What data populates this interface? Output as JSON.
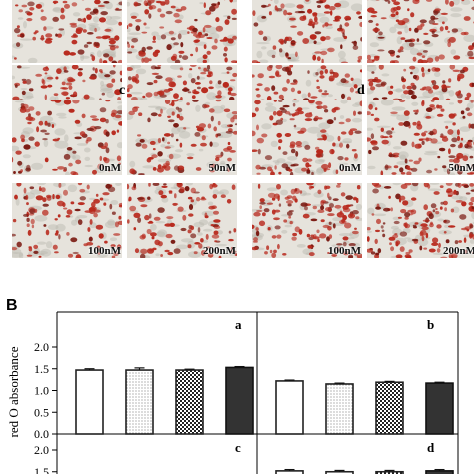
{
  "section_b_label": "B",
  "micrographs": {
    "sets": [
      {
        "label": "",
        "labels": [
          "",
          "",
          "100nM",
          "200nM"
        ],
        "density": 0.75
      },
      {
        "label": "",
        "labels": [
          "",
          "",
          "100nM",
          "200nM"
        ],
        "density": 0.8
      },
      {
        "label": "c",
        "labels": [
          "0nM",
          "50nM",
          "100nM",
          "200nM"
        ],
        "density": 0.55
      },
      {
        "label": "d",
        "labels": [
          "0nM",
          "50nM",
          "100nM",
          "200nM"
        ],
        "density": 0.9
      }
    ],
    "colors": {
      "background": "#e6e3dc",
      "stain": "#b8291d",
      "dark_stain": "#7a1a12"
    }
  },
  "chart_data": {
    "type": "bar",
    "ylabel": "red O absorbance",
    "panels": [
      {
        "label": "a",
        "ylim": [
          0,
          2.0
        ],
        "yticks": [
          "0.0",
          "0.5",
          "1.0",
          "1.5",
          "2.0"
        ],
        "values": [
          1.47,
          1.47,
          1.47,
          1.53
        ],
        "errors": [
          0.03,
          0.05,
          0.02,
          0.02
        ]
      },
      {
        "label": "b",
        "ylim": [
          0,
          2.0
        ],
        "values": [
          1.22,
          1.15,
          1.19,
          1.17
        ],
        "errors": [
          0.02,
          0.02,
          0.02,
          0.02
        ]
      },
      {
        "label": "c",
        "ylim": [
          0,
          2.0
        ],
        "yticks": [
          "1.5",
          "2.0"
        ],
        "values": [],
        "errors": []
      },
      {
        "label": "d",
        "ylim": [
          0,
          2.0
        ],
        "values": [
          1.52,
          1.5,
          1.5,
          1.52
        ],
        "errors": [
          0.03,
          0.03,
          0.03,
          0.03
        ]
      }
    ],
    "bar_styles": [
      "white",
      "dotted",
      "checkered",
      "black"
    ],
    "grid": false
  }
}
